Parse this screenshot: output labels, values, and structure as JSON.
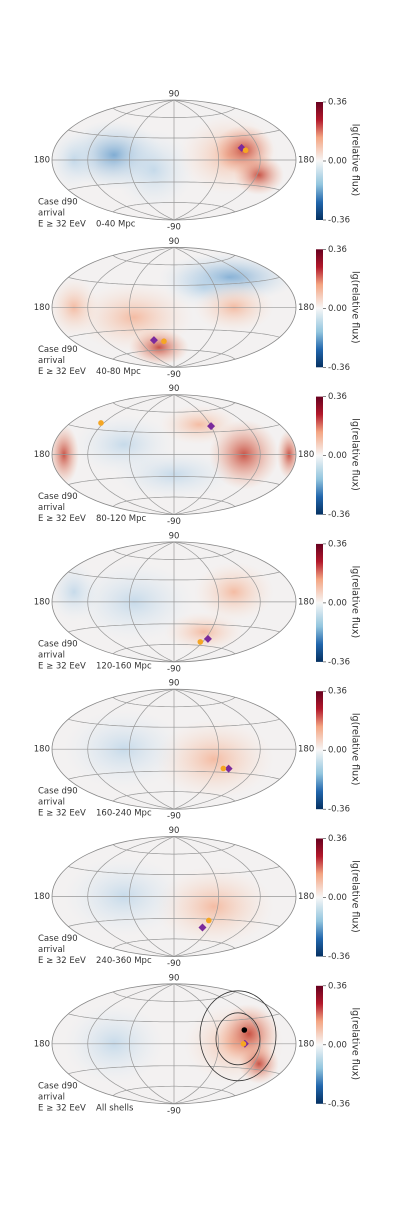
{
  "chart_data": [
    {
      "type": "skymap",
      "annotations": [
        "Case d90",
        "arrival",
        "E ≥ 32 EeV",
        "0-40 Mpc"
      ],
      "grid_labels": {
        "top": "90",
        "bottom": "-90",
        "left": "180",
        "right": "180"
      },
      "xlim": [
        180,
        -180
      ],
      "ylim": [
        -90,
        90
      ],
      "colorbar_label": "lg(relative flux)",
      "clim": [
        -0.36,
        0.36
      ],
      "cticks": [
        0.36,
        {
          "value": 0,
          "label": "0.00"
        },
        -0.36
      ],
      "series": [
        {
          "marker": "diamond",
          "color": "#7b2a9c",
          "x": [
            -95
          ],
          "y": [
            15
          ]
        },
        {
          "marker": "circle",
          "color": "#f5a623",
          "x": [
            -100
          ],
          "y": [
            12
          ]
        }
      ]
    },
    {
      "type": "skymap",
      "annotations": [
        "Case d90",
        "arrival",
        "E ≥ 32 EeV",
        "40-80 Mpc"
      ],
      "grid_labels": {
        "top": "90",
        "bottom": "-90",
        "left": "180",
        "right": "180"
      },
      "xlim": [
        180,
        -180
      ],
      "ylim": [
        -90,
        90
      ],
      "colorbar_label": "lg(relative flux)",
      "clim": [
        -0.36,
        0.36
      ],
      "cticks": [
        0.36,
        {
          "value": 0,
          "label": "0.00"
        },
        -0.36
      ],
      "series": [
        {
          "marker": "diamond",
          "color": "#7b2a9c",
          "x": [
            35
          ],
          "y": [
            -45
          ]
        },
        {
          "marker": "circle",
          "color": "#f5a623",
          "x": [
            18
          ],
          "y": [
            -47
          ]
        }
      ]
    },
    {
      "type": "skymap",
      "annotations": [
        "Case d90",
        "arrival",
        "E ≥ 32 EeV",
        "80-120 Mpc"
      ],
      "grid_labels": {
        "top": "90",
        "bottom": "-90",
        "left": "180",
        "right": "180"
      },
      "xlim": [
        180,
        -180
      ],
      "ylim": [
        -90,
        90
      ],
      "colorbar_label": "lg(relative flux)",
      "clim": [
        -0.36,
        0.36
      ],
      "cticks": [
        0.36,
        {
          "value": 0,
          "label": "0.00"
        },
        -0.36
      ],
      "series": [
        {
          "marker": "diamond",
          "color": "#7b2a9c",
          "x": [
            -60
          ],
          "y": [
            38
          ]
        },
        {
          "marker": "circle",
          "color": "#f5a623",
          "x": [
            125
          ],
          "y": [
            38
          ]
        }
      ]
    },
    {
      "type": "skymap",
      "annotations": [
        "Case d90",
        "arrival",
        "E ≥ 32 EeV",
        "120-160 Mpc"
      ],
      "grid_labels": {
        "top": "90",
        "bottom": "-90",
        "left": "180",
        "right": "180"
      },
      "xlim": [
        180,
        -180
      ],
      "ylim": [
        -90,
        90
      ],
      "colorbar_label": "lg(relative flux)",
      "clim": [
        -0.36,
        0.36
      ],
      "cticks": [
        0.36,
        {
          "value": 0,
          "label": "0.00"
        },
        -0.36
      ],
      "series": [
        {
          "marker": "diamond",
          "color": "#7b2a9c",
          "x": [
            -65
          ],
          "y": [
            -50
          ]
        },
        {
          "marker": "circle",
          "color": "#f5a623",
          "x": [
            -55
          ],
          "y": [
            -55
          ]
        }
      ]
    },
    {
      "type": "skymap",
      "annotations": [
        "Case d90",
        "arrival",
        "E ≥ 32 EeV",
        "160-240 Mpc"
      ],
      "grid_labels": {
        "top": "90",
        "bottom": "-90",
        "left": "180",
        "right": "180"
      },
      "xlim": [
        180,
        -180
      ],
      "ylim": [
        -90,
        90
      ],
      "colorbar_label": "lg(relative flux)",
      "clim": [
        -0.36,
        0.36
      ],
      "cticks": [
        0.36,
        {
          "value": 0,
          "label": "0.00"
        },
        -0.36
      ],
      "series": [
        {
          "marker": "diamond",
          "color": "#7b2a9c",
          "x": [
            -80
          ],
          "y": [
            -25
          ]
        },
        {
          "marker": "circle",
          "color": "#f5a623",
          "x": [
            -72
          ],
          "y": [
            -25
          ]
        }
      ]
    },
    {
      "type": "skymap",
      "annotations": [
        "Case d90",
        "arrival",
        "E ≥ 32 EeV",
        "240-360 Mpc"
      ],
      "grid_labels": {
        "top": "90",
        "bottom": "-90",
        "left": "180",
        "right": "180"
      },
      "xlim": [
        180,
        -180
      ],
      "ylim": [
        -90,
        90
      ],
      "colorbar_label": "lg(relative flux)",
      "clim": [
        -0.36,
        0.36
      ],
      "cticks": [
        0.36,
        {
          "value": 0,
          "label": "0.00"
        },
        -0.36
      ],
      "series": [
        {
          "marker": "diamond",
          "color": "#7b2a9c",
          "x": [
            -48
          ],
          "y": [
            -42
          ]
        },
        {
          "marker": "circle",
          "color": "#f5a623",
          "x": [
            -53
          ],
          "y": [
            -32
          ]
        }
      ]
    },
    {
      "type": "skymap",
      "annotations": [
        "Case d90",
        "arrival",
        "E ≥ 32 EeV",
        "All shells"
      ],
      "grid_labels": {
        "top": "90",
        "bottom": "-90",
        "left": "180",
        "right": "180"
      },
      "xlim": [
        180,
        -180
      ],
      "ylim": [
        -90,
        90
      ],
      "colorbar_label": "lg(relative flux)",
      "clim": [
        -0.36,
        0.36
      ],
      "cticks": [
        0.36,
        {
          "value": 0,
          "label": "0.00"
        },
        -0.36
      ],
      "series": [
        {
          "marker": "diamond",
          "color": "#7b2a9c",
          "x": [
            -97
          ],
          "y": [
            0
          ]
        },
        {
          "marker": "circle",
          "color": "#f5a623",
          "x": [
            -95
          ],
          "y": [
            0
          ]
        },
        {
          "marker": "circle",
          "color": "#000000",
          "x": [
            -100
          ],
          "y": [
            17
          ]
        }
      ]
    }
  ]
}
